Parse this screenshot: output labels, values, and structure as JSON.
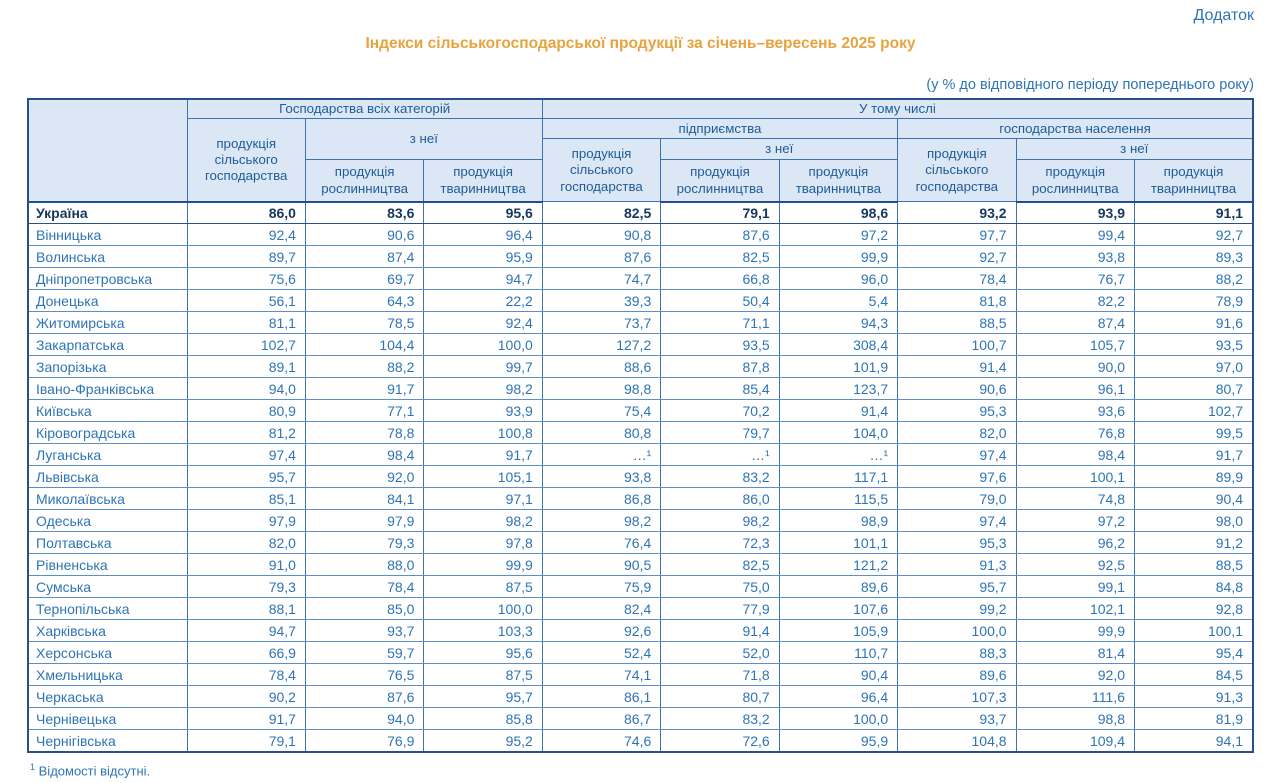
{
  "page": {
    "corner_label": "Додаток",
    "title": "Індекси сільськогосподарської продукції за січень–вересень 2025 року",
    "units_note": "(у % до відповідного періоду попереднього року)",
    "footnote": {
      "marker": "1",
      "text": "Відомості відсутні."
    }
  },
  "colors": {
    "title_orange": "#E8A33D",
    "text_blue": "#2E74B5",
    "header_bg": "#DBE7F4",
    "header_text": "#1F5C99",
    "border_blue": "#3C74AE",
    "outer_border": "#24518A",
    "total_row_text": "#17375D"
  },
  "table": {
    "header": {
      "all_categories": "Господарства всіх категорій",
      "including": "У тому числі",
      "enterprises": "підприємства",
      "households": "господарства населення",
      "agri_production": "продукція сільського господарства",
      "of_which": "з неї",
      "crop_production": "продукція рослинництва",
      "livestock_production": "продукція тваринництва"
    },
    "rows": [
      {
        "region": "Україна",
        "total": true,
        "values": [
          "86,0",
          "83,6",
          "95,6",
          "82,5",
          "79,1",
          "98,6",
          "93,2",
          "93,9",
          "91,1"
        ]
      },
      {
        "region": "Вінницька",
        "values": [
          "92,4",
          "90,6",
          "96,4",
          "90,8",
          "87,6",
          "97,2",
          "97,7",
          "99,4",
          "92,7"
        ]
      },
      {
        "region": "Волинська",
        "values": [
          "89,7",
          "87,4",
          "95,9",
          "87,6",
          "82,5",
          "99,9",
          "92,7",
          "93,8",
          "89,3"
        ]
      },
      {
        "region": "Дніпропетровська",
        "values": [
          "75,6",
          "69,7",
          "94,7",
          "74,7",
          "66,8",
          "96,0",
          "78,4",
          "76,7",
          "88,2"
        ]
      },
      {
        "region": "Донецька",
        "values": [
          "56,1",
          "64,3",
          "22,2",
          "39,3",
          "50,4",
          "5,4",
          "81,8",
          "82,2",
          "78,9"
        ]
      },
      {
        "region": "Житомирська",
        "values": [
          "81,1",
          "78,5",
          "92,4",
          "73,7",
          "71,1",
          "94,3",
          "88,5",
          "87,4",
          "91,6"
        ]
      },
      {
        "region": "Закарпатська",
        "values": [
          "102,7",
          "104,4",
          "100,0",
          "127,2",
          "93,5",
          "308,4",
          "100,7",
          "105,7",
          "93,5"
        ]
      },
      {
        "region": "Запорізька",
        "values": [
          "89,1",
          "88,2",
          "99,7",
          "88,6",
          "87,8",
          "101,9",
          "91,4",
          "90,0",
          "97,0"
        ]
      },
      {
        "region": "Івано-Франківська",
        "values": [
          "94,0",
          "91,7",
          "98,2",
          "98,8",
          "85,4",
          "123,7",
          "90,6",
          "96,1",
          "80,7"
        ]
      },
      {
        "region": "Київська",
        "values": [
          "80,9",
          "77,1",
          "93,9",
          "75,4",
          "70,2",
          "91,4",
          "95,3",
          "93,6",
          "102,7"
        ]
      },
      {
        "region": "Кіровоградська",
        "values": [
          "81,2",
          "78,8",
          "100,8",
          "80,8",
          "79,7",
          "104,0",
          "82,0",
          "76,8",
          "99,5"
        ]
      },
      {
        "region": "Луганська",
        "values": [
          "97,4",
          "98,4",
          "91,7",
          "…¹",
          "…¹",
          "…¹",
          "97,4",
          "98,4",
          "91,7"
        ]
      },
      {
        "region": "Львівська",
        "values": [
          "95,7",
          "92,0",
          "105,1",
          "93,8",
          "83,2",
          "117,1",
          "97,6",
          "100,1",
          "89,9"
        ]
      },
      {
        "region": "Миколаївська",
        "values": [
          "85,1",
          "84,1",
          "97,1",
          "86,8",
          "86,0",
          "115,5",
          "79,0",
          "74,8",
          "90,4"
        ]
      },
      {
        "region": "Одеська",
        "values": [
          "97,9",
          "97,9",
          "98,2",
          "98,2",
          "98,2",
          "98,9",
          "97,4",
          "97,2",
          "98,0"
        ]
      },
      {
        "region": "Полтавська",
        "values": [
          "82,0",
          "79,3",
          "97,8",
          "76,4",
          "72,3",
          "101,1",
          "95,3",
          "96,2",
          "91,2"
        ]
      },
      {
        "region": "Рівненська",
        "values": [
          "91,0",
          "88,0",
          "99,9",
          "90,5",
          "82,5",
          "121,2",
          "91,3",
          "92,5",
          "88,5"
        ]
      },
      {
        "region": "Сумська",
        "values": [
          "79,3",
          "78,4",
          "87,5",
          "75,9",
          "75,0",
          "89,6",
          "95,7",
          "99,1",
          "84,8"
        ]
      },
      {
        "region": "Тернопільська",
        "values": [
          "88,1",
          "85,0",
          "100,0",
          "82,4",
          "77,9",
          "107,6",
          "99,2",
          "102,1",
          "92,8"
        ]
      },
      {
        "region": "Харківська",
        "values": [
          "94,7",
          "93,7",
          "103,3",
          "92,6",
          "91,4",
          "105,9",
          "100,0",
          "99,9",
          "100,1"
        ]
      },
      {
        "region": "Херсонська",
        "values": [
          "66,9",
          "59,7",
          "95,6",
          "52,4",
          "52,0",
          "110,7",
          "88,3",
          "81,4",
          "95,4"
        ]
      },
      {
        "region": "Хмельницька",
        "values": [
          "78,4",
          "76,5",
          "87,5",
          "74,1",
          "71,8",
          "90,4",
          "89,6",
          "92,0",
          "84,5"
        ]
      },
      {
        "region": "Черкаська",
        "values": [
          "90,2",
          "87,6",
          "95,7",
          "86,1",
          "80,7",
          "96,4",
          "107,3",
          "111,6",
          "91,3"
        ]
      },
      {
        "region": "Чернівецька",
        "values": [
          "91,7",
          "94,0",
          "85,8",
          "86,7",
          "83,2",
          "100,0",
          "93,7",
          "98,8",
          "81,9"
        ]
      },
      {
        "region": "Чернігівська",
        "values": [
          "79,1",
          "76,9",
          "95,2",
          "74,6",
          "72,6",
          "95,9",
          "104,8",
          "109,4",
          "94,1"
        ]
      }
    ]
  }
}
